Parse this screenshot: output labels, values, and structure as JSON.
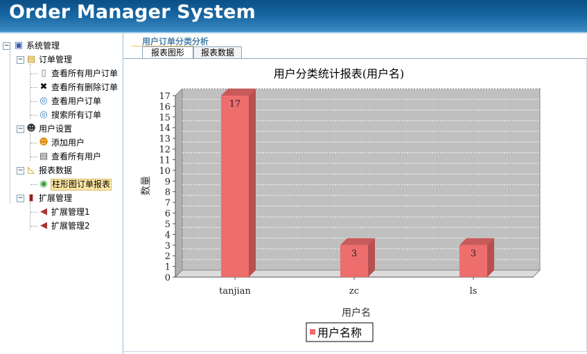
{
  "app": {
    "title": "Order Manager System"
  },
  "tree": {
    "root": "系统管理",
    "groups": [
      {
        "label": "订单管理",
        "icon": "notebook-icon",
        "items": [
          {
            "label": "查看所有用户订单",
            "icon": "open-book-icon"
          },
          {
            "label": "查看所有删除订单",
            "icon": "delete-x-icon"
          },
          {
            "label": "查看用户订单",
            "icon": "magnifier-icon"
          },
          {
            "label": "搜索所有订单",
            "icon": "magnifier-icon"
          }
        ]
      },
      {
        "label": "用户设置",
        "icon": "user-settings-icon",
        "items": [
          {
            "label": "添加用户",
            "icon": "add-user-icon"
          },
          {
            "label": "查看所有用户",
            "icon": "document-list-icon"
          }
        ]
      },
      {
        "label": "报表数据",
        "icon": "ruler-triangle-icon",
        "items": [
          {
            "label": "柱形图订单报表",
            "icon": "globe-chart-icon",
            "selected": true
          }
        ]
      },
      {
        "label": "扩展管理",
        "icon": "red-book-icon",
        "items": [
          {
            "label": "扩展管理1",
            "icon": "speaker-icon"
          },
          {
            "label": "扩展管理2",
            "icon": "speaker-icon"
          }
        ]
      }
    ]
  },
  "main": {
    "section_title": "用户订单分类分析",
    "tabs": [
      {
        "label": "报表图形",
        "active": true
      },
      {
        "label": "报表数据",
        "active": false
      }
    ]
  },
  "chart_data": {
    "type": "bar",
    "title": "用户分类统计报表(用户名)",
    "xlabel": "用户名",
    "ylabel": "数量",
    "categories": [
      "tanjian",
      "zc",
      "ls"
    ],
    "series": [
      {
        "name": "用户名称",
        "values": [
          17,
          3,
          3
        ],
        "color": "#ee6d6d"
      }
    ],
    "ylim": [
      0,
      17
    ],
    "yticks": [
      "0",
      "1",
      "2",
      "3",
      "4",
      "5",
      "6",
      "7",
      "8",
      "9",
      "10",
      "11",
      "12",
      "13",
      "14",
      "15",
      "16",
      "17"
    ],
    "data_labels": [
      "17",
      "3",
      "3"
    ],
    "grid": true,
    "style": "3d",
    "legend_position": "bottom"
  }
}
